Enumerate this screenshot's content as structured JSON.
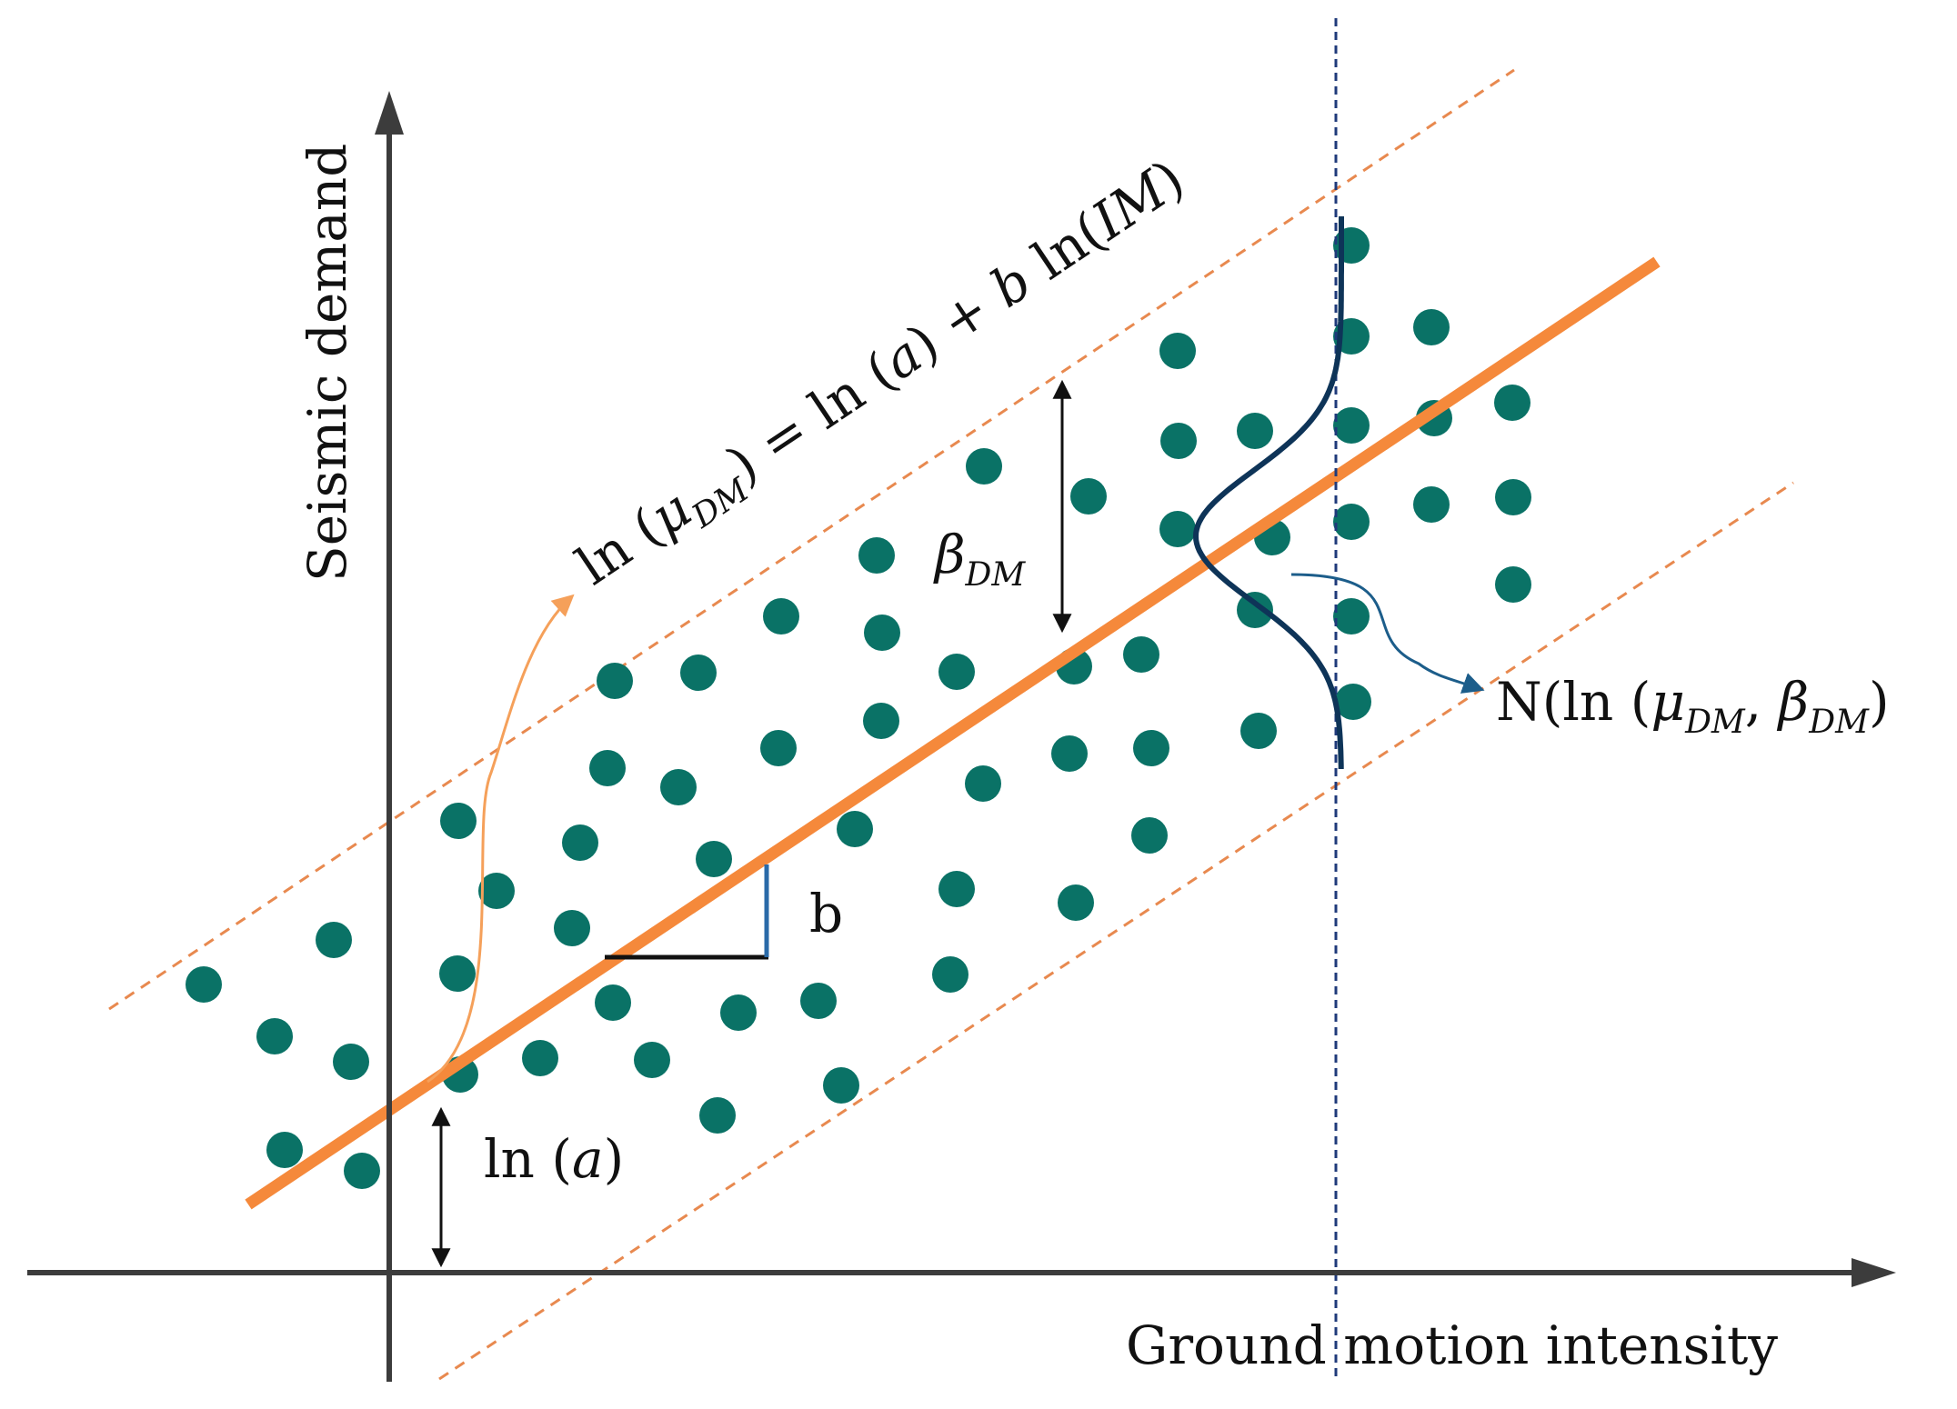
{
  "diagram": {
    "axes": {
      "x_label": "Ground motion intensity",
      "y_label": "Seismic demand"
    },
    "equation": {
      "lhs_prefix": "ln (",
      "mu": "μ",
      "mu_sub": "DM",
      "lhs_suffix": ") = ln (",
      "a": "a",
      "mid": ") + ",
      "b": "b",
      "ln_im_open": " ln(",
      "im": "IM",
      "close": ")"
    },
    "beta_label": {
      "symbol": "β",
      "sub": "DM"
    },
    "slope_label": "b",
    "intercept_label": {
      "prefix": "ln (",
      "a": "a",
      "suffix": ")"
    },
    "normal_label": {
      "prefix": "N(ln (",
      "mu": "μ",
      "mu_sub": "DM",
      "comma": ", ",
      "beta": "β",
      "beta_sub": "DM",
      "close": ")"
    },
    "colors": {
      "points": "#0a7266",
      "regression": "#f5893b",
      "band": "#e8894f",
      "axes": "#3c3c3c",
      "distribution": "#0e3458",
      "dashed_vertical": "#1f3a7a",
      "arrow_blue": "#1c5d8a",
      "arrow_orange": "#f5a05a",
      "triangle_vertical": "#2a6aa8"
    },
    "icons": {
      "axis_arrow": "triangle-arrowhead",
      "point_marker": "filled-circle"
    }
  }
}
